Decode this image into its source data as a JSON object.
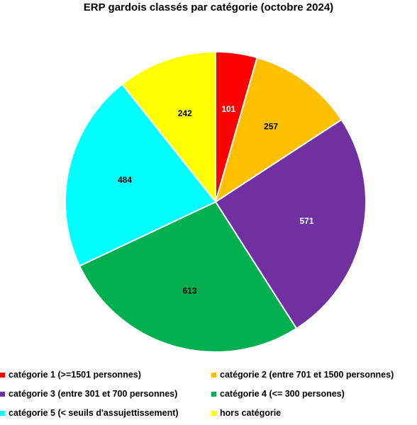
{
  "chart_data": {
    "type": "pie",
    "title": "ERP gardois classés par catégorie (octobre 2024)",
    "categories": [
      "catégorie 1 (>=1501 personnes)",
      "catégorie 2 (entre 701 et 1500 personnes)",
      "catégorie 3 (entre 301 et 700 personnes)",
      "catégorie 4 (<= 300 persones)",
      "catégorie 5 (< seuils d'assujettissement)",
      "hors catégorie"
    ],
    "values": [
      101,
      257,
      571,
      613,
      484,
      242
    ],
    "colors": [
      "#ff0000",
      "#ffc000",
      "#7030a0",
      "#00b050",
      "#00ffff",
      "#ffff00"
    ],
    "label_colors": [
      "#ffffff",
      "#000000",
      "#ffffff",
      "#000000",
      "#000000",
      "#000000"
    ],
    "start": "12 o'clock",
    "direction": "clockwise",
    "legend_position": "bottom"
  }
}
